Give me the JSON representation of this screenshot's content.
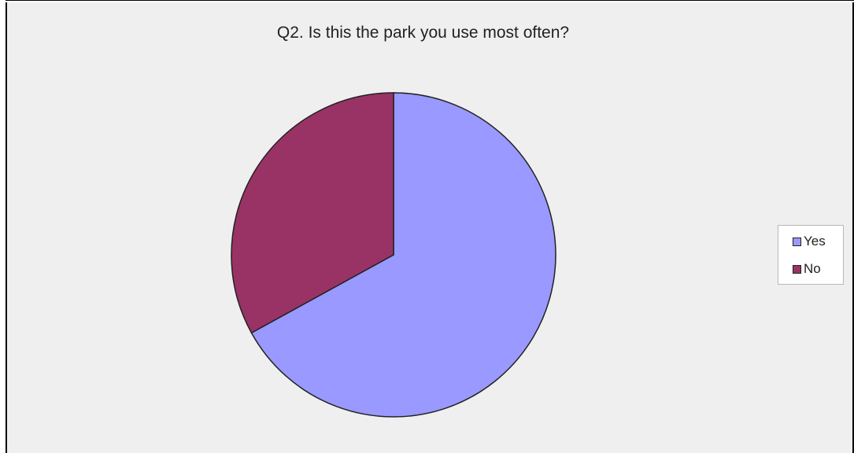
{
  "chart_data": {
    "type": "pie",
    "title": "Q2. Is this the park you use most often?",
    "slices": [
      {
        "label": "Yes",
        "value": 67,
        "color": "#9999ff"
      },
      {
        "label": "No",
        "value": 33,
        "color": "#993366"
      }
    ],
    "legend": {
      "position": "right",
      "entries": [
        "Yes",
        "No"
      ]
    },
    "background_color": "#efefef",
    "slice_border_color": "#222222"
  }
}
